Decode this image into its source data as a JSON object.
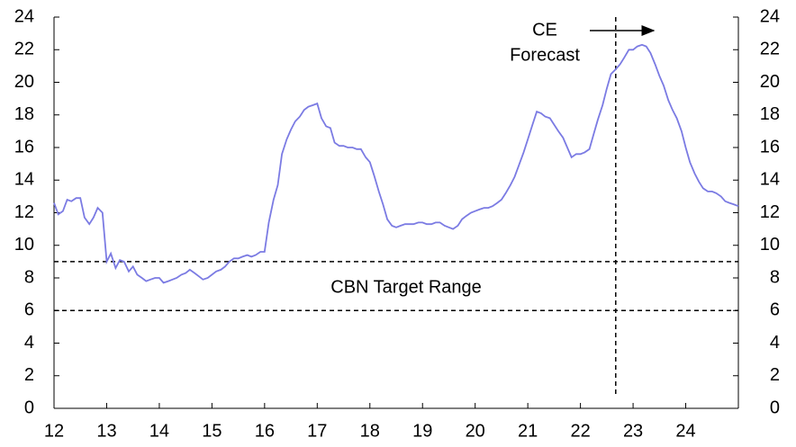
{
  "chart_data": {
    "type": "line",
    "x": [
      12,
      12.08,
      12.17,
      12.25,
      12.33,
      12.42,
      12.5,
      12.58,
      12.67,
      12.75,
      12.83,
      12.92,
      13,
      13.08,
      13.17,
      13.25,
      13.33,
      13.42,
      13.5,
      13.58,
      13.67,
      13.75,
      13.83,
      13.92,
      14,
      14.08,
      14.17,
      14.25,
      14.33,
      14.42,
      14.5,
      14.58,
      14.67,
      14.75,
      14.83,
      14.92,
      15,
      15.08,
      15.17,
      15.25,
      15.33,
      15.42,
      15.5,
      15.58,
      15.67,
      15.75,
      15.83,
      15.92,
      16,
      16.08,
      16.17,
      16.25,
      16.33,
      16.42,
      16.5,
      16.58,
      16.67,
      16.75,
      16.83,
      16.92,
      17,
      17.08,
      17.17,
      17.25,
      17.33,
      17.42,
      17.5,
      17.58,
      17.67,
      17.75,
      17.83,
      17.92,
      18,
      18.08,
      18.17,
      18.25,
      18.33,
      18.42,
      18.5,
      18.58,
      18.67,
      18.75,
      18.83,
      18.92,
      19,
      19.08,
      19.17,
      19.25,
      19.33,
      19.42,
      19.5,
      19.58,
      19.67,
      19.75,
      19.83,
      19.92,
      20,
      20.08,
      20.17,
      20.25,
      20.33,
      20.42,
      20.5,
      20.58,
      20.67,
      20.75,
      20.83,
      20.92,
      21,
      21.08,
      21.17,
      21.25,
      21.33,
      21.42,
      21.5,
      21.58,
      21.67,
      21.75,
      21.83,
      21.92,
      22,
      22.08,
      22.17,
      22.25,
      22.33,
      22.42,
      22.5,
      22.58,
      22.67,
      22.75,
      22.83,
      22.92,
      23,
      23.08,
      23.17,
      23.25,
      23.33,
      23.42,
      23.5,
      23.58,
      23.67,
      23.75,
      23.83,
      23.92,
      24,
      24.08,
      24.17,
      24.25,
      24.33,
      24.42,
      24.5,
      24.58,
      24.67,
      24.75,
      24.83,
      24.92,
      25
    ],
    "series": [
      {
        "color": "#7b7be3",
        "values": [
          12.6,
          11.9,
          12.1,
          12.8,
          12.7,
          12.9,
          12.9,
          11.7,
          11.3,
          11.7,
          12.3,
          12.0,
          9.0,
          9.5,
          8.6,
          9.1,
          9.0,
          8.4,
          8.7,
          8.2,
          8.0,
          7.8,
          7.9,
          8.0,
          8.0,
          7.7,
          7.8,
          7.9,
          8.0,
          8.2,
          8.3,
          8.5,
          8.3,
          8.1,
          7.9,
          8.0,
          8.2,
          8.4,
          8.5,
          8.7,
          9.0,
          9.2,
          9.2,
          9.3,
          9.4,
          9.3,
          9.4,
          9.6,
          9.6,
          11.4,
          12.8,
          13.7,
          15.6,
          16.5,
          17.1,
          17.6,
          17.9,
          18.3,
          18.5,
          18.6,
          18.7,
          17.8,
          17.3,
          17.2,
          16.3,
          16.1,
          16.1,
          16.0,
          16.0,
          15.9,
          15.9,
          15.4,
          15.1,
          14.3,
          13.3,
          12.5,
          11.6,
          11.2,
          11.1,
          11.2,
          11.3,
          11.3,
          11.3,
          11.4,
          11.4,
          11.3,
          11.3,
          11.4,
          11.4,
          11.2,
          11.1,
          11.0,
          11.2,
          11.6,
          11.8,
          12.0,
          12.1,
          12.2,
          12.3,
          12.3,
          12.4,
          12.6,
          12.8,
          13.2,
          13.7,
          14.2,
          14.9,
          15.7,
          16.5,
          17.3,
          18.2,
          18.1,
          17.9,
          17.8,
          17.4,
          17.0,
          16.6,
          16.0,
          15.4,
          15.6,
          15.6,
          15.7,
          15.9,
          16.8,
          17.7,
          18.6,
          19.6,
          20.5,
          20.8,
          21.1,
          21.5,
          22.0,
          22.0,
          22.2,
          22.3,
          22.2,
          21.8,
          21.1,
          20.4,
          19.8,
          18.9,
          18.3,
          17.8,
          17.0,
          16.0,
          15.1,
          14.4,
          13.9,
          13.5,
          13.3,
          13.3,
          13.2,
          13.0,
          12.7,
          12.6,
          12.5,
          12.4
        ]
      }
    ],
    "xlim": [
      12,
      25
    ],
    "xticks": [
      12,
      13,
      14,
      15,
      16,
      17,
      18,
      19,
      20,
      21,
      22,
      23,
      24
    ],
    "ylim": [
      0,
      24
    ],
    "yticks": [
      0,
      2,
      4,
      6,
      8,
      10,
      12,
      14,
      16,
      18,
      20,
      22,
      24
    ],
    "y2lim": [
      0,
      24
    ],
    "y2ticks": [
      0,
      2,
      4,
      6,
      8,
      10,
      12,
      14,
      16,
      18,
      20,
      22,
      24
    ],
    "hlines": [
      9,
      6
    ],
    "vline": 22.67,
    "annotations": [
      "CE",
      "Forecast",
      "CBN Target Range"
    ]
  }
}
